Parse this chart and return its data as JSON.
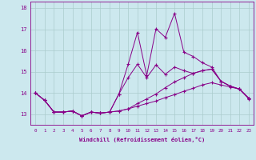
{
  "x": [
    0,
    1,
    2,
    3,
    4,
    5,
    6,
    7,
    8,
    9,
    10,
    11,
    12,
    13,
    14,
    15,
    16,
    17,
    18,
    19,
    20,
    21,
    22,
    23
  ],
  "line_bottom": [
    14.0,
    13.65,
    13.1,
    13.1,
    13.15,
    12.92,
    13.1,
    13.05,
    13.1,
    13.15,
    13.25,
    13.38,
    13.5,
    13.62,
    13.78,
    13.92,
    14.08,
    14.22,
    14.38,
    14.48,
    14.38,
    14.28,
    14.18,
    13.72
  ],
  "line_mid": [
    14.0,
    13.65,
    13.1,
    13.1,
    13.15,
    12.92,
    13.1,
    13.05,
    13.1,
    13.15,
    13.25,
    13.5,
    13.72,
    13.95,
    14.25,
    14.52,
    14.72,
    14.92,
    15.05,
    15.12,
    14.55,
    14.32,
    14.18,
    13.75
  ],
  "line_top": [
    14.0,
    13.65,
    13.1,
    13.1,
    13.15,
    12.92,
    13.1,
    13.05,
    13.1,
    13.95,
    14.72,
    15.35,
    14.72,
    15.32,
    14.88,
    15.22,
    15.05,
    14.92,
    15.05,
    15.12,
    14.55,
    14.32,
    14.18,
    13.75
  ],
  "line_spike": [
    14.0,
    13.65,
    13.1,
    13.1,
    13.15,
    12.92,
    13.1,
    13.05,
    13.1,
    13.95,
    15.35,
    16.85,
    14.82,
    17.02,
    16.62,
    17.75,
    15.92,
    15.72,
    15.42,
    15.22,
    14.55,
    14.32,
    14.18,
    13.75
  ],
  "bg_color": "#cce8ee",
  "grid_color": "#aacccc",
  "line_color": "#880088",
  "xlabel": "Windchill (Refroidissement éolien,°C)",
  "ylim": [
    12.5,
    18.3
  ],
  "xlim": [
    -0.5,
    23.5
  ],
  "yticks": [
    13,
    14,
    15,
    16,
    17,
    18
  ],
  "xticks": [
    0,
    1,
    2,
    3,
    4,
    5,
    6,
    7,
    8,
    9,
    10,
    11,
    12,
    13,
    14,
    15,
    16,
    17,
    18,
    19,
    20,
    21,
    22,
    23
  ]
}
